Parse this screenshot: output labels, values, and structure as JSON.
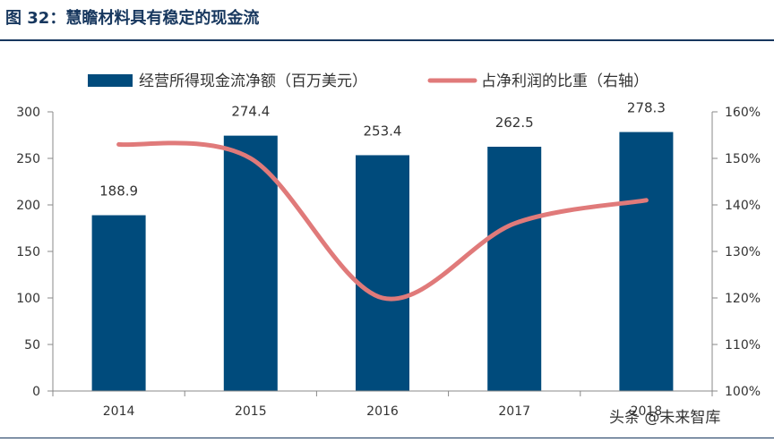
{
  "figure_title": "图 32：慧瞻材料具有稳定的现金流",
  "watermark": "头条 @未来智库",
  "colors": {
    "bar": "#004b7c",
    "line": "#e07a7a",
    "title": "#17375e"
  },
  "chart_data": {
    "type": "bar",
    "categories": [
      "2014",
      "2015",
      "2016",
      "2017",
      "2018"
    ],
    "series": [
      {
        "name": "经营所得现金流净额（百万美元）",
        "type": "bar",
        "axis": "left",
        "values": [
          188.9,
          274.4,
          253.4,
          262.5,
          278.3
        ],
        "data_labels": [
          "188.9",
          "274.4",
          "253.4",
          "262.5",
          "278.3"
        ]
      },
      {
        "name": "占净利润的比重（右轴）",
        "type": "line",
        "axis": "right",
        "values": [
          1.53,
          1.5,
          1.2,
          1.36,
          1.41
        ]
      }
    ],
    "ylim_left": [
      0,
      300
    ],
    "yticks_left": [
      0,
      50,
      100,
      150,
      200,
      250,
      300
    ],
    "ytick_labels_left": [
      "0",
      "50",
      "100",
      "150",
      "200",
      "250",
      "300"
    ],
    "ylim_right": [
      1.0,
      1.6
    ],
    "yticks_right": [
      1.0,
      1.1,
      1.2,
      1.3,
      1.4,
      1.5,
      1.6
    ],
    "ytick_labels_right": [
      "100%",
      "110%",
      "120%",
      "130%",
      "140%",
      "150%",
      "160%"
    ],
    "legend_position": "top",
    "grid": false
  }
}
